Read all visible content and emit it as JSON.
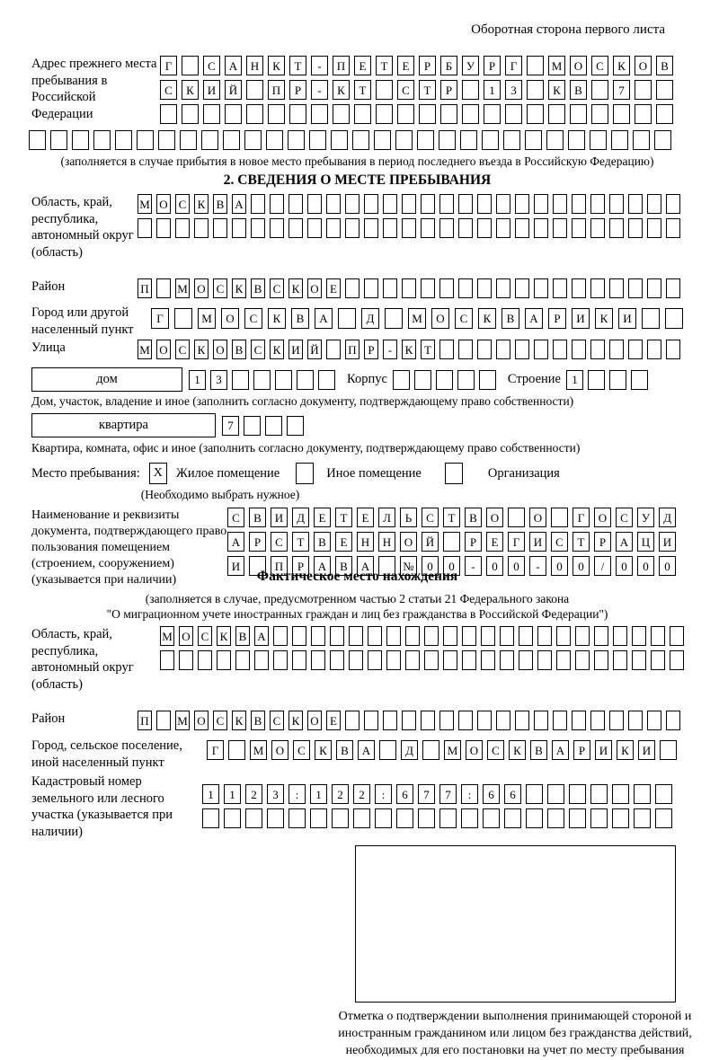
{
  "page": {
    "header_note": "Оборотная сторона первого листа"
  },
  "prev_address": {
    "label": "Адрес прежнего места пребывания в Российской Федерации",
    "rows": [
      "Г САНКТ-ПЕТЕРБУРГ МОСКОВ",
      "СКИЙ ПР-КТ СТР 13 КВ 7  ",
      "                        "
    ],
    "full_row": "                              ",
    "caption": "(заполняется в случае прибытия в новое место пребывания в период последнего въезда в Российскую Федерацию)"
  },
  "section2": {
    "title": "2. СВЕДЕНИЯ О МЕСТЕ ПРЕБЫВАНИЯ",
    "region": {
      "label": "Область, край, республика, автономный округ (область)",
      "rows": [
        "МОСКВА                       ",
        "                             "
      ]
    },
    "district": {
      "label": "Район",
      "row": "П МОСКВСКОЕ                  "
    },
    "city": {
      "label": "Город или другой населенный пункт",
      "row": "Г МОСКВА Д МОСКВАРИКИ  "
    },
    "street": {
      "label": "Улица",
      "row": "МОСКОВСКИЙ ПР-КТ             "
    },
    "house": {
      "box_label": "дом",
      "boxes": "13     ",
      "korpus_label": "Корпус",
      "korpus_boxes": "     ",
      "stroenie_label": "Строение",
      "stroenie_boxes": "1   ",
      "caption": "Дом, участок, владение и иное (заполнить согласно документу, подтверждающему право собственности)"
    },
    "apartment": {
      "box_label": "квартира",
      "boxes": "7   ",
      "caption": "Квартира, комната, офис и иное (заполнить согласно документу, подтверждающему право собственности)"
    },
    "stay_type": {
      "label": "Место пребывания:",
      "options": [
        {
          "label": "Жилое помещение",
          "checked": "X"
        },
        {
          "label": "Иное помещение",
          "checked": ""
        },
        {
          "label": "Организация",
          "checked": ""
        }
      ],
      "note": "(Необходимо выбрать нужное)"
    },
    "doc": {
      "label": "Наименование и реквизиты документа, подтверждающего право пользования помещением (строением, сооружением) (указывается при наличии)",
      "rows": [
        "СВИДЕТЕЛЬСТВО О ГОСУД",
        "АРСТВЕННОЙ РЕГИСТРАЦИ",
        "И ПРАВА №00-00-00/000"
      ]
    }
  },
  "actual_location": {
    "title": "Фактическое место нахождения",
    "caption_line1": "(заполняется в случае, предусмотренном частью 2 статьи 21 Федерального закона",
    "caption_line2": "\"О миграционном учете иностранных граждан и лиц без гражданства в Российской Федерации\")",
    "region": {
      "label": "Область, край, республика, автономный округ (область)",
      "rows": [
        "МОСКВА                      ",
        "                            "
      ]
    },
    "district": {
      "label": "Район",
      "row": "П МОСКВСКОЕ                  "
    },
    "city": {
      "label": "Город, сельское поселение, иной населенный пункт",
      "row": "Г МОСКВА Д МОСКВАРИКИ "
    },
    "cadastre": {
      "label": "Кадастровый номер земельного или лесного участка (указывается при наличии)",
      "rows": [
        "1123:122:677:66       ",
        "                      "
      ]
    }
  },
  "stamp": {
    "caption": "Отметка о подтверждении выполнения принимающей стороной и иностранным гражданином или лицом без гражданства действий, необходимых для его постановки на учет по месту пребывания"
  }
}
